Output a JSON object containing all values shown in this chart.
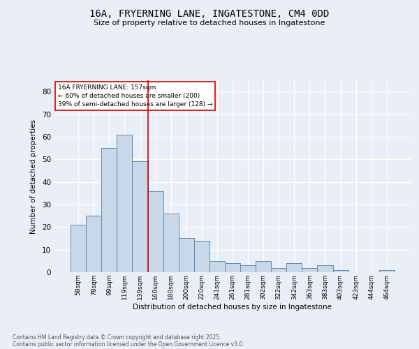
{
  "title": "16A, FRYERNING LANE, INGATESTONE, CM4 0DD",
  "subtitle": "Size of property relative to detached houses in Ingatestone",
  "xlabel": "Distribution of detached houses by size in Ingatestone",
  "ylabel": "Number of detached properties",
  "annotation_line1": "16A FRYERNING LANE: 157sqm",
  "annotation_line2": "← 60% of detached houses are smaller (200)",
  "annotation_line3": "39% of semi-detached houses are larger (128) →",
  "footer_line1": "Contains HM Land Registry data © Crown copyright and database right 2025.",
  "footer_line2": "Contains public sector information licensed under the Open Government Licence v3.0.",
  "bar_color": "#c8d8e8",
  "bar_edge_color": "#5b8db8",
  "background_color": "#eaeff7",
  "grid_color": "#ffffff",
  "annotation_line_color": "#cc0000",
  "annotation_box_color": "#cc0000",
  "categories": [
    "58sqm",
    "78sqm",
    "99sqm",
    "119sqm",
    "139sqm",
    "160sqm",
    "180sqm",
    "200sqm",
    "220sqm",
    "241sqm",
    "261sqm",
    "281sqm",
    "302sqm",
    "322sqm",
    "342sqm",
    "363sqm",
    "383sqm",
    "403sqm",
    "423sqm",
    "444sqm",
    "464sqm"
  ],
  "values": [
    21,
    25,
    55,
    61,
    49,
    36,
    26,
    15,
    14,
    5,
    4,
    3,
    5,
    2,
    4,
    2,
    3,
    1,
    0,
    0,
    1
  ],
  "vline_index": 4.5,
  "ylim": [
    0,
    85
  ],
  "yticks": [
    0,
    10,
    20,
    30,
    40,
    50,
    60,
    70,
    80
  ]
}
